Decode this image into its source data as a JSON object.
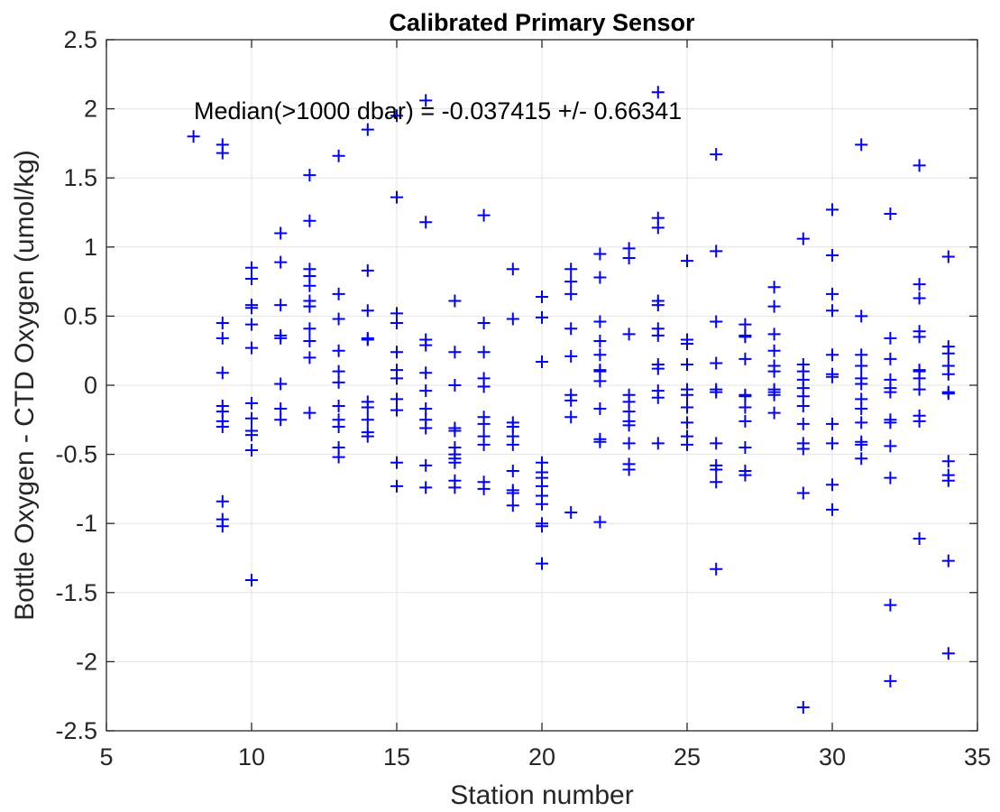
{
  "chart_data": {
    "type": "scatter",
    "title": "Calibrated Primary Sensor",
    "xlabel": "Station number",
    "ylabel": "Bottle Oxygen - CTD Oxygen (umol/kg)",
    "xlim": [
      5,
      35
    ],
    "ylim": [
      -2.5,
      2.5
    ],
    "xticks": [
      5,
      10,
      15,
      20,
      25,
      30,
      35
    ],
    "yticks": [
      -2.5,
      -2,
      -1.5,
      -1,
      -0.5,
      0,
      0.5,
      1,
      1.5,
      2,
      2.5
    ],
    "xtick_labels": [
      "5",
      "10",
      "15",
      "20",
      "25",
      "30",
      "35"
    ],
    "ytick_labels": [
      "-2.5",
      "-2",
      "-1.5",
      "-1",
      "-0.5",
      "0",
      "0.5",
      "1",
      "1.5",
      "2",
      "2.5"
    ],
    "grid": true,
    "marker": "+",
    "marker_color": "#0000ff",
    "annotation": "Median(>1000 dbar) = -0.037415 +/- 0.66341",
    "series": [
      {
        "points": [
          [
            8,
            1.8
          ],
          [
            9,
            1.74
          ],
          [
            9,
            1.68
          ],
          [
            9,
            0.45
          ],
          [
            9,
            0.34
          ],
          [
            9,
            0.09
          ],
          [
            9,
            -0.15
          ],
          [
            9,
            -0.19
          ],
          [
            9,
            -0.26
          ],
          [
            9,
            -0.3
          ],
          [
            9,
            -0.84
          ],
          [
            9,
            -0.97
          ],
          [
            9,
            -1.02
          ],
          [
            10,
            0.85
          ],
          [
            10,
            0.77
          ],
          [
            10,
            0.58
          ],
          [
            10,
            0.56
          ],
          [
            10,
            0.44
          ],
          [
            10,
            0.27
          ],
          [
            10,
            -0.13
          ],
          [
            10,
            -0.24
          ],
          [
            10,
            -0.33
          ],
          [
            10,
            -0.36
          ],
          [
            10,
            -0.47
          ],
          [
            10,
            -1.41
          ],
          [
            11,
            1.1
          ],
          [
            11,
            0.89
          ],
          [
            11,
            0.58
          ],
          [
            11,
            0.36
          ],
          [
            11,
            0.34
          ],
          [
            11,
            0.01
          ],
          [
            11,
            -0.17
          ],
          [
            11,
            -0.25
          ],
          [
            12,
            1.52
          ],
          [
            12,
            1.19
          ],
          [
            12,
            0.84
          ],
          [
            12,
            0.79
          ],
          [
            12,
            0.72
          ],
          [
            12,
            0.61
          ],
          [
            12,
            0.57
          ],
          [
            12,
            0.41
          ],
          [
            12,
            0.32
          ],
          [
            12,
            0.2
          ],
          [
            12,
            -0.2
          ],
          [
            13,
            1.66
          ],
          [
            13,
            0.66
          ],
          [
            13,
            0.48
          ],
          [
            13,
            0.25
          ],
          [
            13,
            0.1
          ],
          [
            13,
            0.02
          ],
          [
            13,
            -0.15
          ],
          [
            13,
            -0.25
          ],
          [
            13,
            -0.3
          ],
          [
            13,
            -0.45
          ],
          [
            13,
            -0.52
          ],
          [
            14,
            1.85
          ],
          [
            14,
            0.83
          ],
          [
            14,
            0.54
          ],
          [
            14,
            0.34
          ],
          [
            14,
            0.33
          ],
          [
            14,
            -0.12
          ],
          [
            14,
            -0.16
          ],
          [
            14,
            -0.25
          ],
          [
            14,
            -0.34
          ],
          [
            14,
            -0.37
          ],
          [
            15,
            1.95
          ],
          [
            15,
            1.36
          ],
          [
            15,
            0.52
          ],
          [
            15,
            0.45
          ],
          [
            15,
            0.24
          ],
          [
            15,
            0.11
          ],
          [
            15,
            0.05
          ],
          [
            15,
            -0.1
          ],
          [
            15,
            -0.18
          ],
          [
            15,
            -0.56
          ],
          [
            15,
            -0.73
          ],
          [
            16,
            2.06
          ],
          [
            16,
            1.18
          ],
          [
            16,
            0.33
          ],
          [
            16,
            0.29
          ],
          [
            16,
            0.09
          ],
          [
            16,
            -0.04
          ],
          [
            16,
            -0.17
          ],
          [
            16,
            -0.25
          ],
          [
            16,
            -0.31
          ],
          [
            16,
            -0.58
          ],
          [
            16,
            -0.74
          ],
          [
            17,
            0.61
          ],
          [
            17,
            0.24
          ],
          [
            17,
            0.0
          ],
          [
            17,
            -0.31
          ],
          [
            17,
            -0.33
          ],
          [
            17,
            -0.45
          ],
          [
            17,
            -0.5
          ],
          [
            17,
            -0.53
          ],
          [
            17,
            -0.56
          ],
          [
            17,
            -0.69
          ],
          [
            17,
            -0.74
          ],
          [
            18,
            1.23
          ],
          [
            18,
            0.45
          ],
          [
            18,
            0.24
          ],
          [
            18,
            0.05
          ],
          [
            18,
            -0.01
          ],
          [
            18,
            -0.23
          ],
          [
            18,
            -0.28
          ],
          [
            18,
            -0.37
          ],
          [
            18,
            -0.43
          ],
          [
            18,
            -0.7
          ],
          [
            18,
            -0.75
          ],
          [
            19,
            0.84
          ],
          [
            19,
            0.48
          ],
          [
            19,
            -0.27
          ],
          [
            19,
            -0.3
          ],
          [
            19,
            -0.37
          ],
          [
            19,
            -0.43
          ],
          [
            19,
            -0.62
          ],
          [
            19,
            -0.76
          ],
          [
            19,
            -0.78
          ],
          [
            19,
            -0.87
          ],
          [
            20,
            0.64
          ],
          [
            20,
            0.49
          ],
          [
            20,
            0.17
          ],
          [
            20,
            -0.56
          ],
          [
            20,
            -0.63
          ],
          [
            20,
            -0.67
          ],
          [
            20,
            -0.73
          ],
          [
            20,
            -0.8
          ],
          [
            20,
            -0.86
          ],
          [
            20,
            -1.0
          ],
          [
            20,
            -1.02
          ],
          [
            20,
            -1.29
          ],
          [
            21,
            0.84
          ],
          [
            21,
            0.75
          ],
          [
            21,
            0.66
          ],
          [
            21,
            0.41
          ],
          [
            21,
            0.21
          ],
          [
            21,
            -0.07
          ],
          [
            21,
            -0.11
          ],
          [
            21,
            -0.23
          ],
          [
            21,
            -0.92
          ],
          [
            22,
            0.95
          ],
          [
            22,
            0.78
          ],
          [
            22,
            0.46
          ],
          [
            22,
            0.32
          ],
          [
            22,
            0.22
          ],
          [
            22,
            0.11
          ],
          [
            22,
            0.1
          ],
          [
            22,
            0.03
          ],
          [
            22,
            -0.17
          ],
          [
            22,
            -0.39
          ],
          [
            22,
            -0.41
          ],
          [
            22,
            -0.99
          ],
          [
            23,
            0.99
          ],
          [
            23,
            0.92
          ],
          [
            23,
            0.37
          ],
          [
            23,
            -0.07
          ],
          [
            23,
            -0.12
          ],
          [
            23,
            -0.19
          ],
          [
            23,
            -0.26
          ],
          [
            23,
            -0.29
          ],
          [
            23,
            -0.42
          ],
          [
            23,
            -0.57
          ],
          [
            23,
            -0.61
          ],
          [
            24,
            2.12
          ],
          [
            24,
            1.21
          ],
          [
            24,
            1.14
          ],
          [
            24,
            0.61
          ],
          [
            24,
            0.58
          ],
          [
            24,
            0.41
          ],
          [
            24,
            0.36
          ],
          [
            24,
            0.15
          ],
          [
            24,
            0.12
          ],
          [
            24,
            -0.04
          ],
          [
            24,
            -0.09
          ],
          [
            24,
            -0.42
          ],
          [
            25,
            0.9
          ],
          [
            25,
            0.33
          ],
          [
            25,
            0.3
          ],
          [
            25,
            0.15
          ],
          [
            25,
            -0.03
          ],
          [
            25,
            -0.07
          ],
          [
            25,
            -0.16
          ],
          [
            25,
            -0.27
          ],
          [
            25,
            -0.37
          ],
          [
            25,
            -0.43
          ],
          [
            26,
            1.67
          ],
          [
            26,
            0.97
          ],
          [
            26,
            0.46
          ],
          [
            26,
            0.16
          ],
          [
            26,
            -0.03
          ],
          [
            26,
            -0.05
          ],
          [
            26,
            -0.42
          ],
          [
            26,
            -0.58
          ],
          [
            26,
            -0.61
          ],
          [
            26,
            -0.7
          ],
          [
            26,
            -1.33
          ],
          [
            27,
            0.44
          ],
          [
            27,
            0.36
          ],
          [
            27,
            0.35
          ],
          [
            27,
            0.19
          ],
          [
            27,
            -0.07
          ],
          [
            27,
            -0.08
          ],
          [
            27,
            -0.16
          ],
          [
            27,
            -0.26
          ],
          [
            27,
            -0.45
          ],
          [
            27,
            -0.62
          ],
          [
            27,
            -0.65
          ],
          [
            28,
            0.71
          ],
          [
            28,
            0.57
          ],
          [
            28,
            0.37
          ],
          [
            28,
            0.25
          ],
          [
            28,
            0.14
          ],
          [
            28,
            0.1
          ],
          [
            28,
            -0.03
          ],
          [
            28,
            -0.05
          ],
          [
            28,
            -0.07
          ],
          [
            28,
            -0.2
          ],
          [
            29,
            1.06
          ],
          [
            29,
            0.15
          ],
          [
            29,
            0.1
          ],
          [
            29,
            0.04
          ],
          [
            29,
            -0.02
          ],
          [
            29,
            -0.08
          ],
          [
            29,
            -0.15
          ],
          [
            29,
            -0.28
          ],
          [
            29,
            -0.42
          ],
          [
            29,
            -0.46
          ],
          [
            29,
            -0.78
          ],
          [
            29,
            -2.33
          ],
          [
            30,
            1.27
          ],
          [
            30,
            0.94
          ],
          [
            30,
            0.66
          ],
          [
            30,
            0.54
          ],
          [
            30,
            0.22
          ],
          [
            30,
            0.08
          ],
          [
            30,
            0.06
          ],
          [
            30,
            -0.28
          ],
          [
            30,
            -0.42
          ],
          [
            30,
            -0.72
          ],
          [
            30,
            -0.9
          ],
          [
            31,
            1.74
          ],
          [
            31,
            0.5
          ],
          [
            31,
            0.22
          ],
          [
            31,
            0.14
          ],
          [
            31,
            0.05
          ],
          [
            31,
            0.01
          ],
          [
            31,
            -0.1
          ],
          [
            31,
            -0.17
          ],
          [
            31,
            -0.27
          ],
          [
            31,
            -0.41
          ],
          [
            31,
            -0.43
          ],
          [
            31,
            -0.53
          ],
          [
            32,
            1.24
          ],
          [
            32,
            0.34
          ],
          [
            32,
            0.19
          ],
          [
            32,
            0.04
          ],
          [
            32,
            -0.02
          ],
          [
            32,
            -0.05
          ],
          [
            32,
            -0.25
          ],
          [
            32,
            -0.27
          ],
          [
            32,
            -0.44
          ],
          [
            32,
            -0.67
          ],
          [
            32,
            -1.59
          ],
          [
            32,
            -2.14
          ],
          [
            33,
            1.59
          ],
          [
            33,
            0.73
          ],
          [
            33,
            0.63
          ],
          [
            33,
            0.39
          ],
          [
            33,
            0.35
          ],
          [
            33,
            0.11
          ],
          [
            33,
            0.1
          ],
          [
            33,
            0.05
          ],
          [
            33,
            -0.03
          ],
          [
            33,
            -0.22
          ],
          [
            33,
            -0.26
          ],
          [
            33,
            -1.11
          ],
          [
            34,
            0.93
          ],
          [
            34,
            0.28
          ],
          [
            34,
            0.23
          ],
          [
            34,
            0.14
          ],
          [
            34,
            0.08
          ],
          [
            34,
            -0.05
          ],
          [
            34,
            -0.06
          ],
          [
            34,
            -0.55
          ],
          [
            34,
            -0.65
          ],
          [
            34,
            -0.69
          ],
          [
            34,
            -1.27
          ],
          [
            34,
            -1.94
          ]
        ]
      }
    ]
  }
}
